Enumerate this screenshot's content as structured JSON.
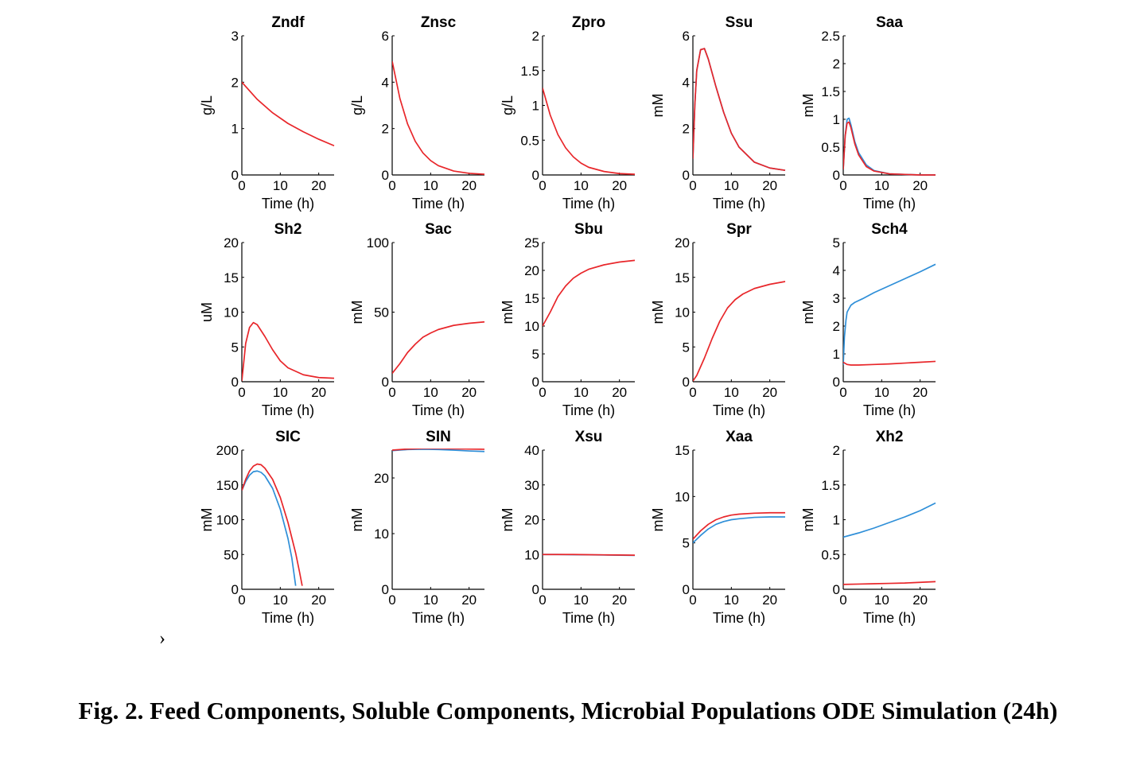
{
  "caption": "Fig. 2.  Feed Components, Soluble Components, Microbial Populations ODE Simulation (24h)",
  "stray_mark": "›",
  "colors": {
    "series_red": "#e8262a",
    "series_blue": "#2f8fd8",
    "axis": "#000000"
  },
  "chart_data": [
    {
      "type": "line",
      "title": "Zndf",
      "xlabel": "Time (h)",
      "ylabel": "g/L",
      "xlim": [
        0,
        24
      ],
      "ylim": [
        0,
        3
      ],
      "xticks": [
        0,
        10,
        20
      ],
      "yticks": [
        0,
        1,
        2,
        3
      ],
      "series": [
        {
          "color": "red",
          "x": [
            0,
            4,
            8,
            12,
            16,
            20,
            24
          ],
          "y": [
            2.0,
            1.63,
            1.34,
            1.11,
            0.93,
            0.77,
            0.63
          ]
        }
      ]
    },
    {
      "type": "line",
      "title": "Znsc",
      "xlabel": "Time (h)",
      "ylabel": "g/L",
      "xlim": [
        0,
        24
      ],
      "ylim": [
        0,
        6
      ],
      "xticks": [
        0,
        10,
        20
      ],
      "yticks": [
        0,
        2,
        4,
        6
      ],
      "series": [
        {
          "color": "red",
          "x": [
            0,
            2,
            4,
            6,
            8,
            10,
            12,
            16,
            20,
            24
          ],
          "y": [
            4.9,
            3.3,
            2.2,
            1.45,
            0.95,
            0.62,
            0.4,
            0.17,
            0.07,
            0.03
          ]
        }
      ]
    },
    {
      "type": "line",
      "title": "Zpro",
      "xlabel": "Time (h)",
      "ylabel": "g/L",
      "xlim": [
        0,
        24
      ],
      "ylim": [
        0,
        2
      ],
      "xticks": [
        0,
        10,
        20
      ],
      "yticks": [
        0,
        0.5,
        1,
        1.5,
        2
      ],
      "series": [
        {
          "color": "red",
          "x": [
            0,
            2,
            4,
            6,
            8,
            10,
            12,
            16,
            20,
            24
          ],
          "y": [
            1.25,
            0.86,
            0.58,
            0.39,
            0.26,
            0.17,
            0.11,
            0.05,
            0.02,
            0.01
          ]
        }
      ]
    },
    {
      "type": "line",
      "title": "Ssu",
      "xlabel": "Time (h)",
      "ylabel": "mM",
      "xlim": [
        0,
        24
      ],
      "ylim": [
        0,
        6
      ],
      "xticks": [
        0,
        10,
        20
      ],
      "yticks": [
        0,
        2,
        4,
        6
      ],
      "series": [
        {
          "color": "blue",
          "x": [
            0,
            0.5,
            1,
            2,
            3,
            4,
            6,
            8,
            10,
            12,
            16,
            20,
            24
          ],
          "y": [
            0.7,
            3.0,
            4.5,
            5.4,
            5.45,
            5.0,
            3.8,
            2.7,
            1.8,
            1.2,
            0.55,
            0.3,
            0.2
          ]
        },
        {
          "color": "red",
          "x": [
            0,
            0.5,
            1,
            2,
            3,
            4,
            6,
            8,
            10,
            12,
            16,
            20,
            24
          ],
          "y": [
            0.7,
            3.0,
            4.5,
            5.4,
            5.45,
            5.0,
            3.8,
            2.7,
            1.8,
            1.2,
            0.55,
            0.3,
            0.2
          ]
        }
      ]
    },
    {
      "type": "line",
      "title": "Saa",
      "xlabel": "Time (h)",
      "ylabel": "mM",
      "xlim": [
        0,
        24
      ],
      "ylim": [
        0,
        2.5
      ],
      "xticks": [
        0,
        10,
        20
      ],
      "yticks": [
        0,
        0.5,
        1,
        1.5,
        2,
        2.5
      ],
      "series": [
        {
          "color": "blue",
          "x": [
            0,
            0.5,
            1,
            1.5,
            2,
            3,
            4,
            6,
            8,
            12,
            16,
            20,
            24
          ],
          "y": [
            0.1,
            0.7,
            1.0,
            1.02,
            0.9,
            0.6,
            0.4,
            0.18,
            0.08,
            0.02,
            0.01,
            0.0,
            0.0
          ]
        },
        {
          "color": "red",
          "x": [
            0,
            0.5,
            1,
            1.5,
            2,
            3,
            4,
            6,
            8,
            12,
            16,
            20,
            24
          ],
          "y": [
            0.1,
            0.7,
            0.93,
            0.95,
            0.85,
            0.56,
            0.36,
            0.15,
            0.07,
            0.02,
            0.01,
            0.0,
            0.0
          ]
        }
      ]
    },
    {
      "type": "line",
      "title": "Sh2",
      "xlabel": "Time (h)",
      "ylabel": "uM",
      "xlim": [
        0,
        24
      ],
      "ylim": [
        0,
        20
      ],
      "xticks": [
        0,
        10,
        20
      ],
      "yticks": [
        0,
        5,
        10,
        15,
        20
      ],
      "series": [
        {
          "color": "red",
          "x": [
            0,
            1,
            2,
            3,
            4,
            6,
            8,
            10,
            12,
            16,
            20,
            24
          ],
          "y": [
            0.1,
            5.5,
            7.8,
            8.5,
            8.2,
            6.5,
            4.6,
            3.0,
            2.0,
            1.0,
            0.6,
            0.5
          ]
        }
      ]
    },
    {
      "type": "line",
      "title": "Sac",
      "xlabel": "Time (h)",
      "ylabel": "mM",
      "xlim": [
        0,
        24
      ],
      "ylim": [
        0,
        100
      ],
      "xticks": [
        0,
        10,
        20
      ],
      "yticks": [
        0,
        50,
        100
      ],
      "series": [
        {
          "color": "red",
          "x": [
            0,
            2,
            4,
            6,
            8,
            10,
            12,
            16,
            20,
            24
          ],
          "y": [
            6,
            13,
            21,
            27,
            32,
            35,
            37.5,
            40.5,
            42,
            43
          ]
        }
      ]
    },
    {
      "type": "line",
      "title": "Sbu",
      "xlabel": "Time (h)",
      "ylabel": "mM",
      "xlim": [
        0,
        24
      ],
      "ylim": [
        0,
        25
      ],
      "xticks": [
        0,
        10,
        20
      ],
      "yticks": [
        0,
        5,
        10,
        15,
        20,
        25
      ],
      "series": [
        {
          "color": "red",
          "x": [
            0,
            2,
            4,
            6,
            8,
            10,
            12,
            16,
            20,
            24
          ],
          "y": [
            10,
            12.5,
            15.3,
            17.2,
            18.6,
            19.5,
            20.2,
            21,
            21.5,
            21.8
          ]
        }
      ]
    },
    {
      "type": "line",
      "title": "Spr",
      "xlabel": "Time (h)",
      "ylabel": "mM",
      "xlim": [
        0,
        24
      ],
      "ylim": [
        0,
        20
      ],
      "xticks": [
        0,
        10,
        20
      ],
      "yticks": [
        0,
        5,
        10,
        15,
        20
      ],
      "series": [
        {
          "color": "red",
          "x": [
            0,
            1,
            3,
            5,
            7,
            9,
            11,
            13,
            16,
            20,
            24
          ],
          "y": [
            0.1,
            0.9,
            3.4,
            6.2,
            8.7,
            10.6,
            11.8,
            12.6,
            13.4,
            14.0,
            14.4
          ]
        }
      ]
    },
    {
      "type": "line",
      "title": "Sch4",
      "xlabel": "Time (h)",
      "ylabel": "mM",
      "xlim": [
        0,
        24
      ],
      "ylim": [
        0,
        5
      ],
      "xticks": [
        0,
        10,
        20
      ],
      "yticks": [
        0,
        1,
        2,
        3,
        4,
        5
      ],
      "series": [
        {
          "color": "blue",
          "x": [
            0,
            0.3,
            0.7,
            1,
            2,
            3,
            5,
            8,
            12,
            16,
            20,
            24
          ],
          "y": [
            0.6,
            1.6,
            2.2,
            2.5,
            2.75,
            2.85,
            2.98,
            3.2,
            3.45,
            3.7,
            3.95,
            4.22
          ]
        },
        {
          "color": "red",
          "x": [
            0,
            1,
            2,
            4,
            8,
            12,
            16,
            20,
            24
          ],
          "y": [
            0.7,
            0.62,
            0.6,
            0.6,
            0.62,
            0.64,
            0.67,
            0.7,
            0.73
          ]
        }
      ]
    },
    {
      "type": "line",
      "title": "SIC",
      "xlabel": "Time (h)",
      "ylabel": "mM",
      "xlim": [
        0,
        24
      ],
      "ylim": [
        0,
        200
      ],
      "xticks": [
        0,
        10,
        20
      ],
      "yticks": [
        0,
        50,
        100,
        150,
        200
      ],
      "series": [
        {
          "color": "blue",
          "x": [
            0,
            1,
            2,
            3,
            4,
            5,
            6,
            8,
            10,
            12,
            13,
            14
          ],
          "y": [
            142,
            155,
            164,
            169,
            170,
            168,
            163,
            145,
            115,
            73,
            45,
            5
          ]
        },
        {
          "color": "red",
          "x": [
            0,
            1,
            2,
            3,
            4,
            5,
            6,
            8,
            10,
            12,
            14,
            15,
            15.7
          ],
          "y": [
            142,
            158,
            170,
            177,
            180,
            179,
            174,
            158,
            132,
            96,
            52,
            25,
            5
          ]
        }
      ]
    },
    {
      "type": "line",
      "title": "SIN",
      "xlabel": "Time (h)",
      "ylabel": "mM",
      "xlim": [
        0,
        24
      ],
      "ylim": [
        0,
        25
      ],
      "xticks": [
        0,
        10,
        20
      ],
      "yticks": [
        0,
        10,
        20
      ],
      "series": [
        {
          "color": "blue",
          "x": [
            0,
            4,
            8,
            12,
            16,
            20,
            24
          ],
          "y": [
            24.9,
            25.1,
            25.15,
            25.1,
            25.0,
            24.85,
            24.75
          ]
        },
        {
          "color": "red",
          "x": [
            0,
            4,
            8,
            12,
            16,
            20,
            24
          ],
          "y": [
            25.0,
            25.2,
            25.3,
            25.3,
            25.25,
            25.2,
            25.15
          ]
        }
      ]
    },
    {
      "type": "line",
      "title": "Xsu",
      "xlabel": "Time (h)",
      "ylabel": "mM",
      "xlim": [
        0,
        24
      ],
      "ylim": [
        0,
        40
      ],
      "xticks": [
        0,
        10,
        20
      ],
      "yticks": [
        0,
        10,
        20,
        30,
        40
      ],
      "series": [
        {
          "color": "blue",
          "x": [
            0,
            4,
            8,
            12,
            16,
            20,
            24
          ],
          "y": [
            10,
            10,
            9.95,
            9.9,
            9.85,
            9.8,
            9.75
          ]
        },
        {
          "color": "red",
          "x": [
            0,
            4,
            8,
            12,
            16,
            20,
            24
          ],
          "y": [
            10,
            10,
            10,
            9.95,
            9.9,
            9.85,
            9.8
          ]
        }
      ]
    },
    {
      "type": "line",
      "title": "Xaa",
      "xlabel": "Time (h)",
      "ylabel": "mM",
      "xlim": [
        0,
        24
      ],
      "ylim": [
        0,
        15
      ],
      "xticks": [
        0,
        10,
        20
      ],
      "yticks": [
        0,
        5,
        10,
        15
      ],
      "series": [
        {
          "color": "blue",
          "x": [
            0,
            2,
            4,
            6,
            8,
            10,
            12,
            16,
            20,
            24
          ],
          "y": [
            5.0,
            5.8,
            6.5,
            7.0,
            7.3,
            7.5,
            7.6,
            7.75,
            7.8,
            7.8
          ]
        },
        {
          "color": "red",
          "x": [
            0,
            2,
            4,
            6,
            8,
            10,
            12,
            16,
            20,
            24
          ],
          "y": [
            5.4,
            6.3,
            7.0,
            7.5,
            7.8,
            8.0,
            8.1,
            8.2,
            8.25,
            8.25
          ]
        }
      ]
    },
    {
      "type": "line",
      "title": "Xh2",
      "xlabel": "Time (h)",
      "ylabel": "mM",
      "xlim": [
        0,
        24
      ],
      "ylim": [
        0,
        2
      ],
      "xticks": [
        0,
        10,
        20
      ],
      "yticks": [
        0,
        0.5,
        1,
        1.5,
        2
      ],
      "series": [
        {
          "color": "blue",
          "x": [
            0,
            4,
            8,
            12,
            16,
            20,
            24
          ],
          "y": [
            0.75,
            0.81,
            0.88,
            0.96,
            1.04,
            1.13,
            1.24
          ]
        },
        {
          "color": "red",
          "x": [
            0,
            4,
            8,
            12,
            16,
            20,
            24
          ],
          "y": [
            0.07,
            0.075,
            0.08,
            0.085,
            0.09,
            0.1,
            0.11
          ]
        }
      ]
    }
  ]
}
